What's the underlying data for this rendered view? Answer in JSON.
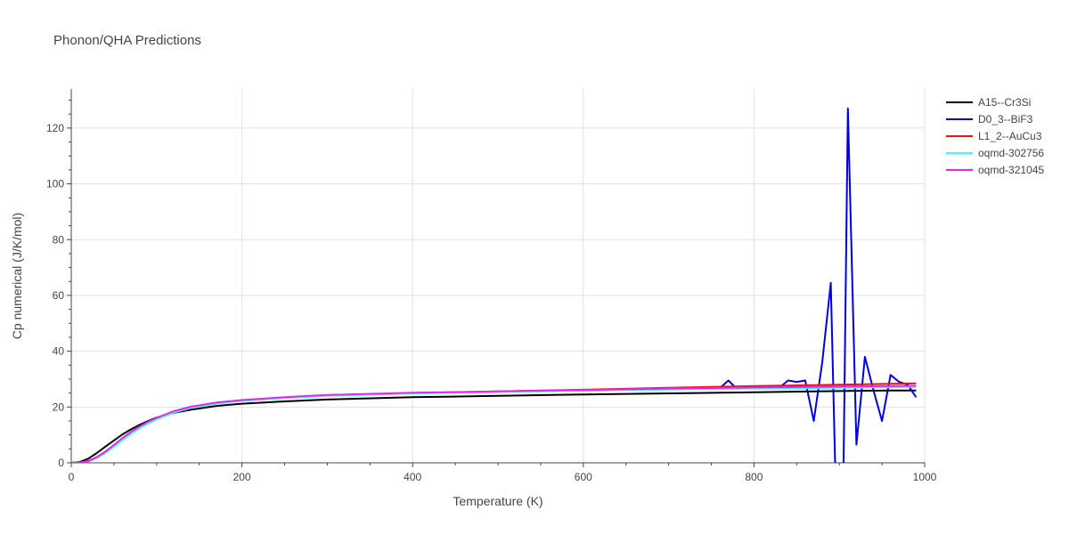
{
  "chart_data": {
    "type": "line",
    "title": "Phonon/QHA Predictions",
    "xlabel": "Temperature (K)",
    "ylabel": "Cp numerical (J/K/mol)",
    "xlim": [
      0,
      1000
    ],
    "ylim": [
      0,
      134
    ],
    "xticks": [
      0,
      200,
      400,
      600,
      800,
      1000
    ],
    "yticks": [
      0,
      20,
      40,
      60,
      80,
      100,
      120
    ],
    "grid": true,
    "legend_position": "top-right",
    "series": [
      {
        "name": "A15--Cr3Si",
        "color": "#000000",
        "x": [
          0,
          10,
          20,
          30,
          40,
          50,
          60,
          70,
          80,
          90,
          100,
          120,
          140,
          170,
          200,
          250,
          300,
          400,
          500,
          600,
          700,
          800,
          900,
          960,
          990
        ],
        "y": [
          0,
          0.3,
          1.5,
          3.5,
          5.8,
          8.0,
          10.2,
          12.0,
          13.6,
          15.0,
          16.2,
          17.9,
          19.0,
          20.4,
          21.2,
          22.0,
          22.7,
          23.5,
          24.0,
          24.5,
          24.9,
          25.3,
          25.7,
          25.9,
          25.9
        ]
      },
      {
        "name": "D0_3--BiF3",
        "color": "#0000dd",
        "x": [
          0,
          10,
          20,
          30,
          40,
          50,
          60,
          70,
          80,
          90,
          100,
          120,
          140,
          170,
          200,
          250,
          300,
          400,
          500,
          600,
          700,
          760,
          770,
          780,
          790,
          800,
          810,
          820,
          830,
          840,
          850,
          860,
          870,
          880,
          890,
          895,
          900,
          905,
          910,
          920,
          930,
          940,
          950,
          960,
          970,
          980,
          990
        ],
        "y": [
          0,
          0.1,
          0.6,
          2.0,
          4.0,
          6.3,
          8.8,
          11.0,
          12.9,
          14.6,
          16.0,
          18.4,
          20.0,
          21.5,
          22.4,
          23.4,
          24.2,
          25.0,
          25.5,
          26.0,
          26.6,
          26.8,
          29.5,
          26.5,
          27.0,
          27.0,
          27.5,
          27.2,
          27.0,
          29.5,
          29.0,
          29.5,
          15.0,
          36.0,
          64.5,
          0.5,
          -5.0,
          0.5,
          127.0,
          6.5,
          38.0,
          26.0,
          15.0,
          31.5,
          29.0,
          28.0,
          23.5
        ]
      },
      {
        "name": "L1_2--AuCu3",
        "color": "#ee1111",
        "x": [
          0,
          10,
          20,
          30,
          40,
          50,
          60,
          70,
          80,
          90,
          100,
          120,
          140,
          170,
          200,
          250,
          300,
          400,
          500,
          600,
          700,
          800,
          900,
          960,
          990
        ],
        "y": [
          0,
          0.1,
          0.6,
          2.0,
          4.0,
          6.3,
          8.8,
          11.0,
          12.9,
          14.6,
          16.0,
          18.4,
          20.0,
          21.5,
          22.4,
          23.4,
          24.2,
          25.0,
          25.6,
          26.2,
          26.9,
          27.5,
          28.0,
          28.3,
          28.5
        ]
      },
      {
        "name": "oqmd-302756",
        "color": "#33ffff",
        "x": [
          0,
          10,
          20,
          30,
          40,
          50,
          60,
          70,
          80,
          90,
          100,
          120,
          140,
          170,
          200,
          250,
          300,
          400,
          500,
          600,
          700,
          800,
          900,
          960,
          990
        ],
        "y": [
          0,
          0.1,
          0.5,
          1.7,
          3.5,
          5.8,
          8.2,
          10.4,
          12.4,
          14.1,
          15.6,
          18.0,
          19.7,
          21.2,
          22.2,
          23.2,
          24.0,
          24.9,
          25.4,
          25.9,
          26.3,
          26.6,
          26.9,
          27.1,
          27.2
        ]
      },
      {
        "name": "oqmd-321045",
        "color": "#ee22ee",
        "x": [
          0,
          10,
          20,
          30,
          40,
          50,
          60,
          70,
          80,
          90,
          100,
          120,
          140,
          170,
          200,
          250,
          300,
          400,
          500,
          600,
          700,
          800,
          900,
          960,
          990
        ],
        "y": [
          0,
          0.1,
          0.6,
          2.0,
          4.0,
          6.4,
          8.9,
          11.1,
          13.0,
          14.7,
          16.1,
          18.5,
          20.1,
          21.6,
          22.5,
          23.5,
          24.3,
          25.1,
          25.6,
          26.1,
          26.6,
          27.0,
          27.3,
          27.5,
          27.6
        ]
      }
    ]
  }
}
